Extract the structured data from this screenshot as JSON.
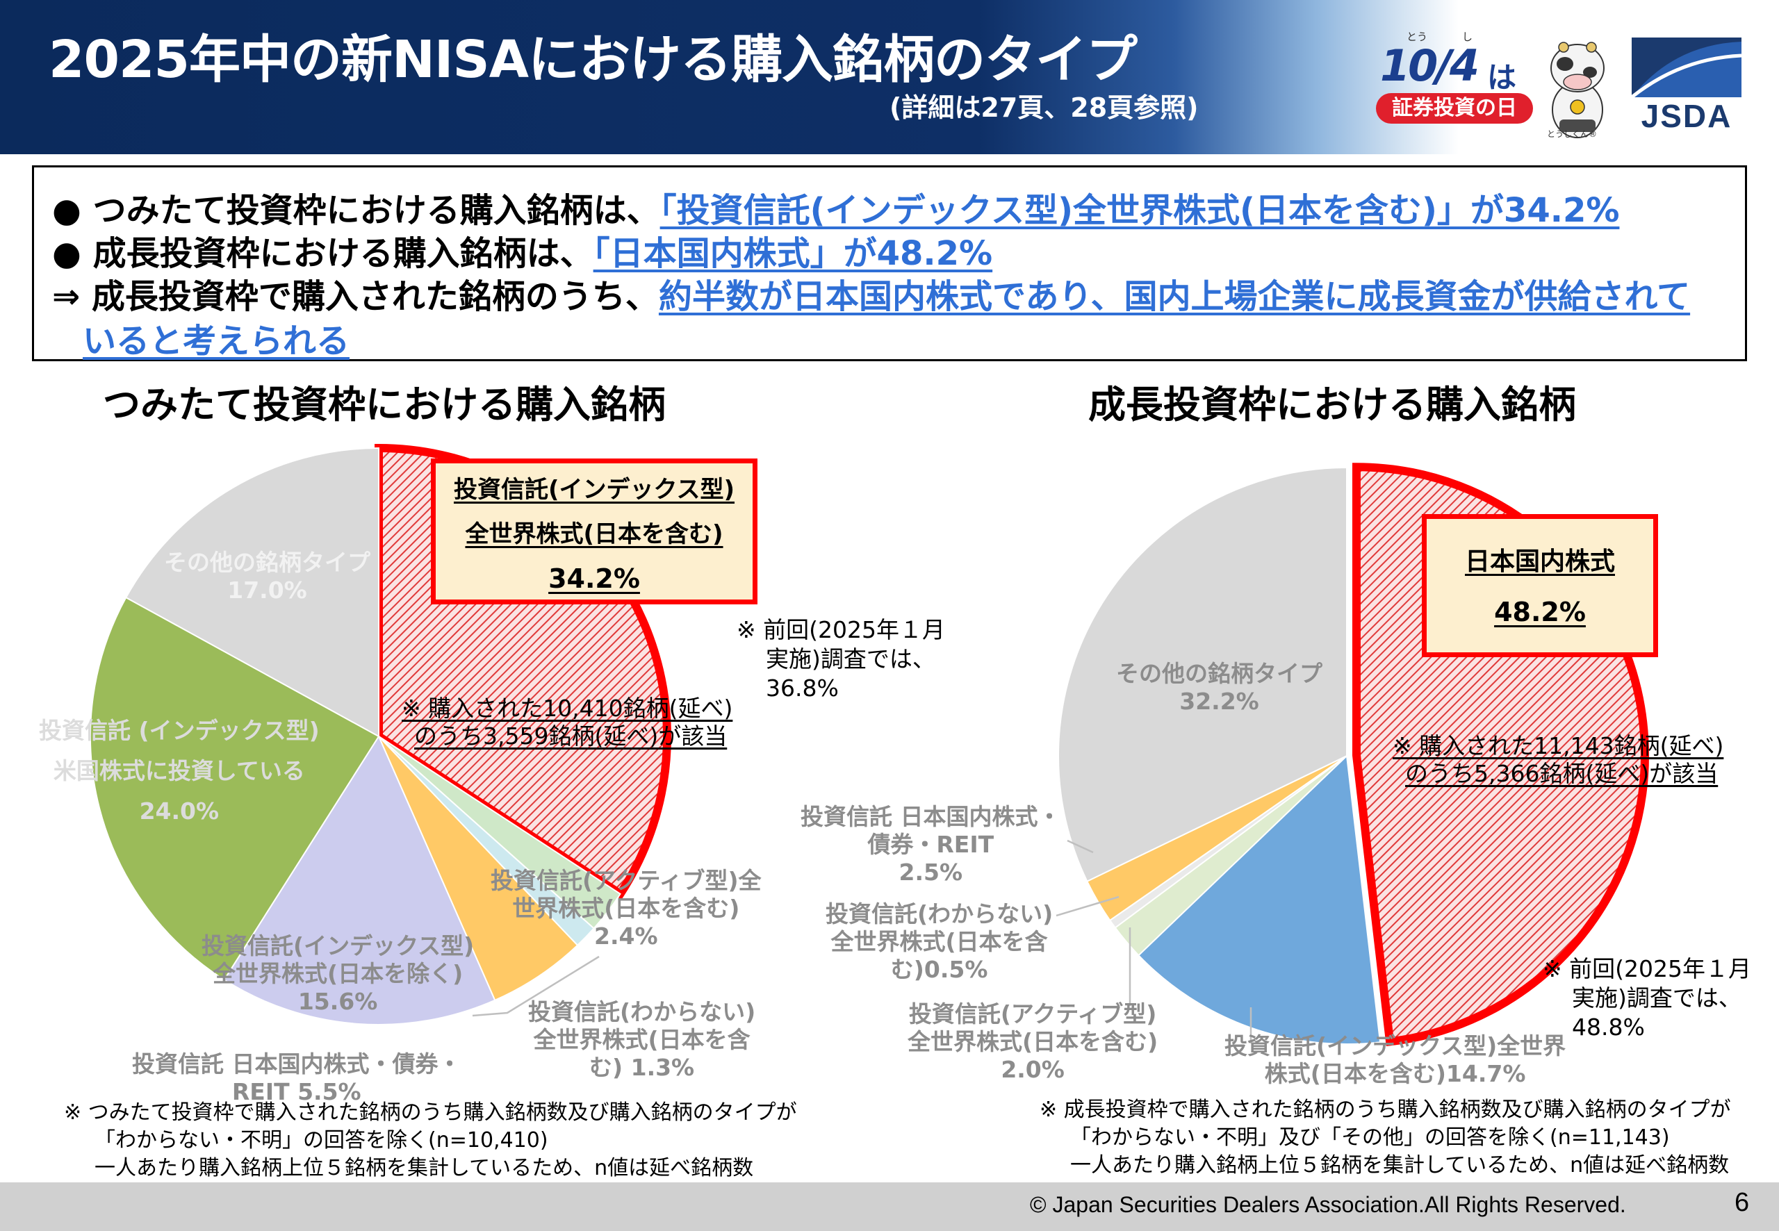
{
  "header": {
    "title": "2025年中の新NISAにおける購入銘柄のタイプ",
    "subtitle": "(詳細は27頁、28頁参照)",
    "badge_ruby_1": "とう",
    "badge_ruby_2": "し",
    "badge_date": "10/4",
    "badge_wa": "は",
    "badge_pill": "証券投資の日",
    "mascot_caption": "とうしくん®",
    "jsda_logo": "JSDA",
    "colors": {
      "navy": "#0e2f66",
      "red": "#e0202c"
    },
    "icons": [
      "mascot-icon",
      "jsda-logo-icon"
    ]
  },
  "summary": {
    "line1_prefix": "●  つみたて投資枠における購入銘柄は、",
    "line1_highlight": "「投資信託(インデックス型)全世界株式(日本を含む)」が34.2%",
    "line2_prefix": "●  成長投資枠における購入銘柄は、",
    "line2_highlight": "「日本国内株式」が48.2%",
    "line3_prefix": "⇒  成長投資枠で購入された銘柄のうち、",
    "line3_highlight": "約半数が日本国内株式であり、国内上場企業に成長資金が供給されて",
    "line4_highlight": "いると考えられる",
    "highlight_color": "#2f6fd6"
  },
  "chart_data": [
    {
      "type": "pie",
      "title": "つみたて投資枠における購入銘柄",
      "slices": [
        {
          "label": "投資信託(インデックス型)全世界株式(日本を含む)",
          "value": 34.2,
          "color": "#ff0000",
          "pattern": "red-hatch",
          "highlighted": true
        },
        {
          "label": "投資信託(アクティブ型)全世界株式(日本を含む)",
          "value": 2.4,
          "color": "#cfe8c8"
        },
        {
          "label": "投資信託(わからない)全世界株式(日本を含む)",
          "value": 1.3,
          "color": "#cde9ef"
        },
        {
          "label": "投資信託 日本国内株式・債券・REIT",
          "value": 5.5,
          "color": "#ffc966"
        },
        {
          "label": "投資信託(インデックス型)全世界株式(日本を除く)",
          "value": 15.6,
          "color": "#ccccee"
        },
        {
          "label": "投資信託 (インデックス型) 米国株式に投資している",
          "value": 24.0,
          "color": "#9bbb59"
        },
        {
          "label": "その他の銘柄タイプ",
          "value": 17.0,
          "color": "#d9d9d9"
        }
      ],
      "callout": {
        "line1": "投資信託(インデックス型)",
        "line2": "全世界株式(日本を含む)",
        "line3": "34.2%"
      },
      "labels": {
        "other": [
          "その他の銘柄タイプ",
          "17.0%"
        ],
        "us": [
          "投資信託 (インデックス型)",
          "米国株式に投資している",
          "24.0%"
        ],
        "ex_japan": [
          "投資信託(インデックス型)",
          "全世界株式(日本を除く)",
          "15.6%"
        ],
        "domestic": [
          "投資信託 日本国内株式・債券・",
          "REIT  5.5%"
        ],
        "unknown": [
          "投資信託(わからない)",
          "全世界株式(日本を含",
          "む) 1.3%"
        ],
        "active": [
          "投資信託(アクティブ型)全",
          "世界株式(日本を含む)",
          "2.4%"
        ]
      },
      "slice_note": [
        "※ 購入された10,410銘柄(延べ)",
        "のうち3,559銘柄(延べ)が該当"
      ],
      "previous_note": [
        "※  前回(2025年１月",
        "実施)調査では、",
        "36.8%"
      ],
      "footnote": [
        "※  つみたて投資枠で購入された銘柄のうち購入銘柄数及び購入銘柄のタイプが",
        "「わからない・不明」の回答を除く(n=10,410)",
        "一人あたり購入銘柄上位５銘柄を集計しているため、n値は延べ銘柄数"
      ]
    },
    {
      "type": "pie",
      "title": "成長投資枠における購入銘柄",
      "slices": [
        {
          "label": "日本国内株式",
          "value": 48.2,
          "color": "#ff0000",
          "pattern": "red-hatch",
          "highlighted": true
        },
        {
          "label": "投資信託(インデックス型)全世界株式(日本を含む)",
          "value": 14.7,
          "color": "#6fa8dc"
        },
        {
          "label": "投資信託(アクティブ型)全世界株式(日本を含む)",
          "value": 2.0,
          "color": "#dfeccf"
        },
        {
          "label": "投資信託(わからない)全世界株式(日本を含む)",
          "value": 0.5,
          "color": "#eaeaea"
        },
        {
          "label": "投資信託 日本国内株式・債券・REIT",
          "value": 2.5,
          "color": "#ffc966"
        },
        {
          "label": "その他の銘柄タイプ",
          "value": 32.2,
          "color": "#d9d9d9"
        }
      ],
      "callout": {
        "line1": "日本国内株式",
        "line2": "48.2%"
      },
      "labels": {
        "other": [
          "その他の銘柄タイプ",
          "32.2%"
        ],
        "domestic": [
          "投資信託 日本国内株式・",
          "債券・REIT",
          "2.5%"
        ],
        "unknown": [
          "投資信託(わからない)",
          "全世界株式(日本を含",
          "む)0.5%"
        ],
        "active": [
          "投資信託(アクティブ型)",
          "全世界株式(日本を含む)",
          "2.0%"
        ],
        "index": [
          "投資信託(インデックス型)全世界",
          "株式(日本を含む)14.7%"
        ]
      },
      "slice_note": [
        "※ 購入された11,143銘柄(延べ)",
        "のうち5,366銘柄(延べ)が該当"
      ],
      "previous_note": [
        "※ 前回(2025年１月",
        "実施)調査では、",
        "48.8%"
      ],
      "footnote": [
        "※  成長投資枠で購入された銘柄のうち購入銘柄数及び購入銘柄のタイプが",
        "「わからない・不明」及び「その他」の回答を除く(n=11,143)",
        "一人あたり購入銘柄上位５銘柄を集計しているため、n値は延べ銘柄数"
      ]
    }
  ],
  "footer": {
    "copyright": "©  Japan Securities Dealers Association.All Rights Reserved.",
    "page": "6"
  }
}
